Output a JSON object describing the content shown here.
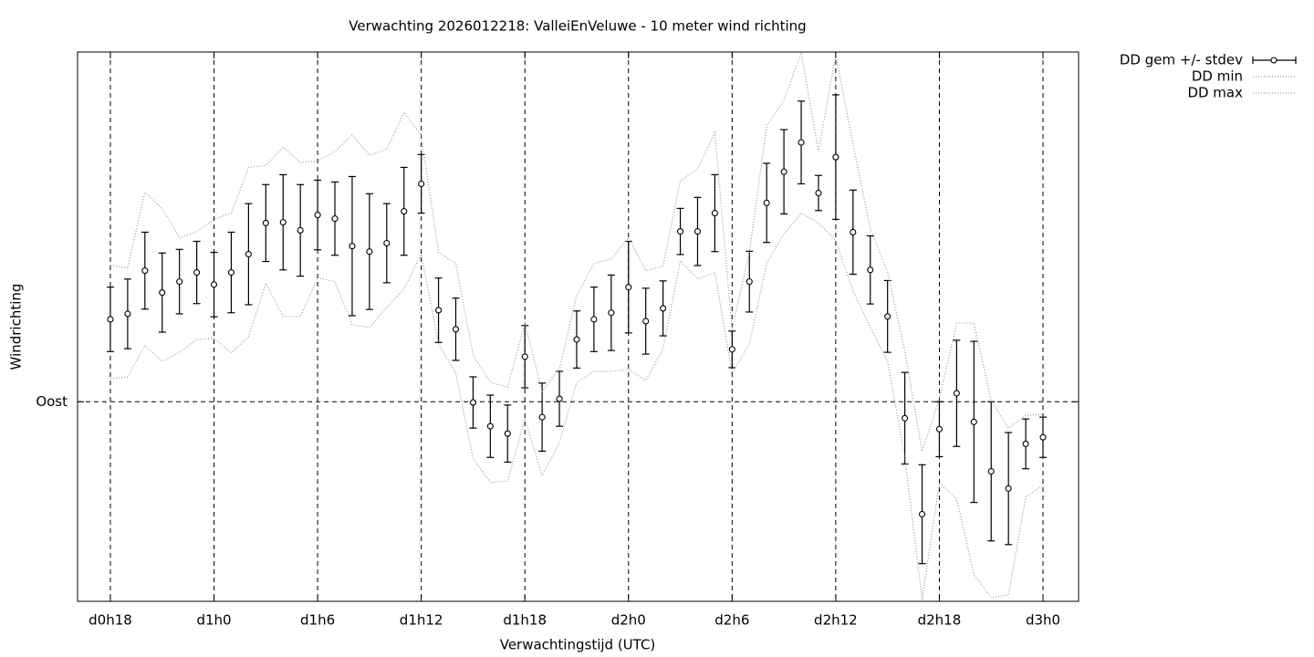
{
  "chart_data": {
    "type": "errorbar",
    "title": "Verwachting 2026012218: ValleiEnVeluwe - 10 meter wind richting",
    "xlabel": "Verwachtingstijd (UTC)",
    "ylabel": "Windrichting",
    "xlim": [
      16.1,
      74.06
    ],
    "ylim": [
      35.5,
      185.5
    ],
    "xticks": [
      {
        "value": 18,
        "label": "d0h18"
      },
      {
        "value": 24,
        "label": "d1h0"
      },
      {
        "value": 30,
        "label": "d1h6"
      },
      {
        "value": 36,
        "label": "d1h12"
      },
      {
        "value": 42,
        "label": "d1h18"
      },
      {
        "value": 48,
        "label": "d2h0"
      },
      {
        "value": 54,
        "label": "d2h6"
      },
      {
        "value": 60,
        "label": "d2h12"
      },
      {
        "value": 66,
        "label": "d2h18"
      },
      {
        "value": 72,
        "label": "d3h0"
      }
    ],
    "yticks": [
      {
        "value": 90,
        "label": "Oost"
      }
    ],
    "grid": true,
    "legend": "outside-top-right",
    "x": [
      18,
      19,
      20,
      21,
      22,
      23,
      24,
      25,
      26,
      27,
      28,
      29,
      30,
      31,
      32,
      33,
      34,
      35,
      36,
      37,
      38,
      39,
      40,
      41,
      42,
      43,
      44,
      45,
      46,
      47,
      48,
      49,
      50,
      51,
      52,
      53,
      54,
      55,
      56,
      57,
      58,
      59,
      60,
      61,
      62,
      63,
      64,
      65,
      66,
      67,
      68,
      69,
      70,
      71,
      72
    ],
    "series": [
      {
        "name": "DD gem +/- stdev",
        "color": "#000000",
        "values": [
          112.5,
          114,
          125.8,
          119.8,
          122.8,
          125.3,
          122,
          125.3,
          130.3,
          138.8,
          139,
          136.8,
          141,
          140,
          132.5,
          131,
          133.3,
          142,
          149.5,
          115,
          109.8,
          89.8,
          83.3,
          81.3,
          102.3,
          85.8,
          90.8,
          107,
          112.5,
          114.3,
          121.3,
          112,
          115.5,
          136.5,
          136.5,
          141.5,
          104.3,
          122.8,
          144.3,
          152.8,
          160.8,
          147,
          156.8,
          136.3,
          126,
          113.3,
          85.5,
          59.3,
          82.5,
          92.3,
          84.5,
          71,
          66.3,
          78.5,
          80.3
        ],
        "errors": [
          8.8,
          9.5,
          10.5,
          10.8,
          8.8,
          8.5,
          8.8,
          11,
          13.8,
          10.5,
          13,
          12.5,
          9.5,
          10,
          19,
          15.8,
          10.8,
          12,
          8,
          8.8,
          8.5,
          7,
          8.5,
          7.8,
          8.5,
          9.3,
          7.5,
          7.8,
          8.8,
          10.3,
          12.5,
          9,
          7.5,
          6.3,
          9.3,
          10.5,
          5,
          8.3,
          10.8,
          11.5,
          11.3,
          4.8,
          17,
          11.5,
          9.3,
          9.8,
          12.5,
          13.5,
          7.5,
          14.5,
          22,
          19,
          15.3,
          6.8,
          5.5
        ]
      },
      {
        "name": "DD min",
        "color": "#999999",
        "values": [
          96.3,
          96.8,
          105.3,
          101,
          103.5,
          107,
          107.3,
          103.3,
          107.8,
          122.3,
          113.3,
          113.3,
          123.8,
          122.8,
          111,
          110.3,
          115.8,
          120.8,
          130.3,
          105.8,
          97.8,
          74.5,
          68,
          68.3,
          85.5,
          69.8,
          78.8,
          95.3,
          98.3,
          98.3,
          98.8,
          95.8,
          104.5,
          128.5,
          123.5,
          125.3,
          97.8,
          105.8,
          127.8,
          135.8,
          141.5,
          138.8,
          134,
          120.3,
          110.3,
          101,
          74.8,
          36,
          67.8,
          63.5,
          42.8,
          36.5,
          37.3,
          64,
          67.3
        ]
      },
      {
        "name": "DD max",
        "color": "#999999",
        "values": [
          127.3,
          126.5,
          147.3,
          142.8,
          134.8,
          136.5,
          139.8,
          141.5,
          154,
          154.5,
          159.5,
          155.3,
          155.8,
          158.3,
          162.8,
          157.3,
          159,
          169,
          162.8,
          130.8,
          127.8,
          102.8,
          95.3,
          94,
          111.5,
          92.8,
          99,
          119,
          127.8,
          129,
          134.8,
          125.8,
          127,
          150.3,
          153.5,
          163.5,
          109.8,
          130.8,
          165.3,
          172.3,
          185.3,
          158.3,
          184.8,
          160.3,
          137.3,
          125.3,
          104,
          76.5,
          90.8,
          111.5,
          111.5,
          90.3,
          82.8,
          86.3,
          86.5
        ]
      }
    ]
  }
}
